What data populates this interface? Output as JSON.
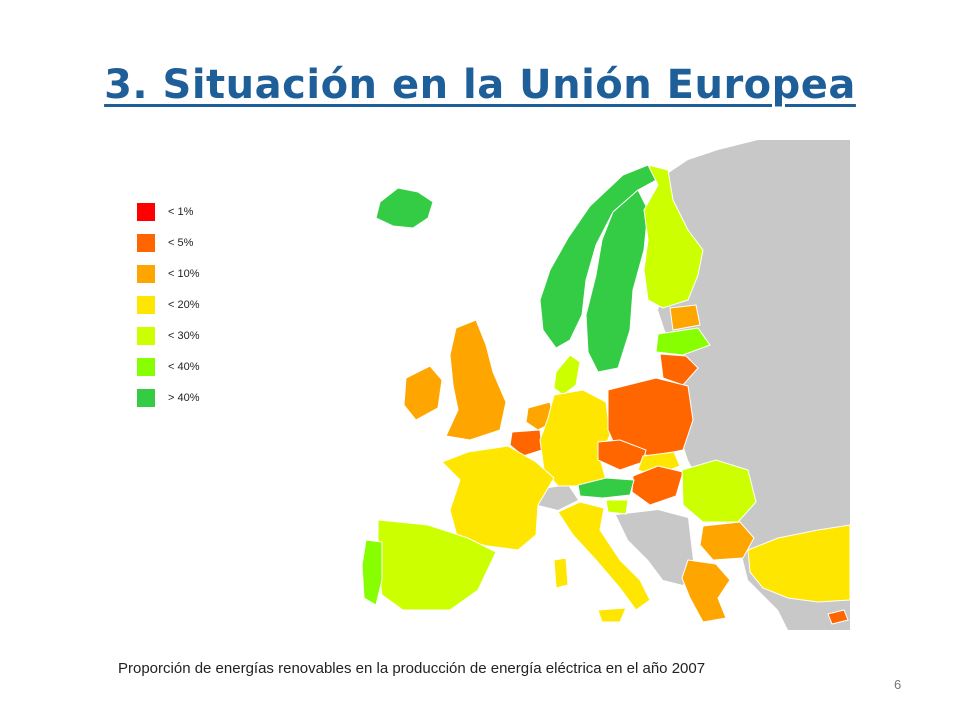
{
  "title": "3. Situación en la Unión Europea",
  "caption": "Proporción de energías renovables en la producción de energía eléctrica en el año 2007",
  "page_number": "6",
  "legend": [
    {
      "label": "< 1%",
      "color": "#ff0000"
    },
    {
      "label": "< 5%",
      "color": "#ff6600"
    },
    {
      "label": "< 10%",
      "color": "#ffa500"
    },
    {
      "label": "< 20%",
      "color": "#ffe600"
    },
    {
      "label": "< 30%",
      "color": "#ccff00"
    },
    {
      "label": "< 40%",
      "color": "#88ff00"
    },
    {
      "label": "> 40%",
      "color": "#33cc44"
    }
  ],
  "map": {
    "no_data_color": "#c8c8c8",
    "sea_color": "#ffffff",
    "regions": [
      {
        "name": "Iceland",
        "category": "> 40%"
      },
      {
        "name": "Norway",
        "category": "> 40%"
      },
      {
        "name": "Sweden",
        "category": "> 40%"
      },
      {
        "name": "Finland",
        "category": "< 30%"
      },
      {
        "name": "Estonia",
        "category": "< 10%"
      },
      {
        "name": "Latvia",
        "category": "< 40%"
      },
      {
        "name": "Lithuania",
        "category": "< 5%"
      },
      {
        "name": "Denmark",
        "category": "< 30%"
      },
      {
        "name": "Ireland",
        "category": "< 10%"
      },
      {
        "name": "United Kingdom",
        "category": "< 10%"
      },
      {
        "name": "Netherlands",
        "category": "< 10%"
      },
      {
        "name": "Belgium",
        "category": "< 5%"
      },
      {
        "name": "Germany",
        "category": "< 20%"
      },
      {
        "name": "Poland",
        "category": "< 5%"
      },
      {
        "name": "Czech Republic",
        "category": "< 5%"
      },
      {
        "name": "Slovakia",
        "category": "< 20%"
      },
      {
        "name": "Hungary",
        "category": "< 5%"
      },
      {
        "name": "Austria",
        "category": "> 40%"
      },
      {
        "name": "Slovenia",
        "category": "< 30%"
      },
      {
        "name": "France",
        "category": "< 20%"
      },
      {
        "name": "Spain",
        "category": "< 30%"
      },
      {
        "name": "Portugal",
        "category": "< 40%"
      },
      {
        "name": "Italy",
        "category": "< 20%"
      },
      {
        "name": "Romania",
        "category": "< 30%"
      },
      {
        "name": "Bulgaria",
        "category": "< 10%"
      },
      {
        "name": "Greece",
        "category": "< 10%"
      },
      {
        "name": "Turkey",
        "category": "< 20%"
      },
      {
        "name": "Cyprus",
        "category": "< 5%"
      }
    ]
  }
}
